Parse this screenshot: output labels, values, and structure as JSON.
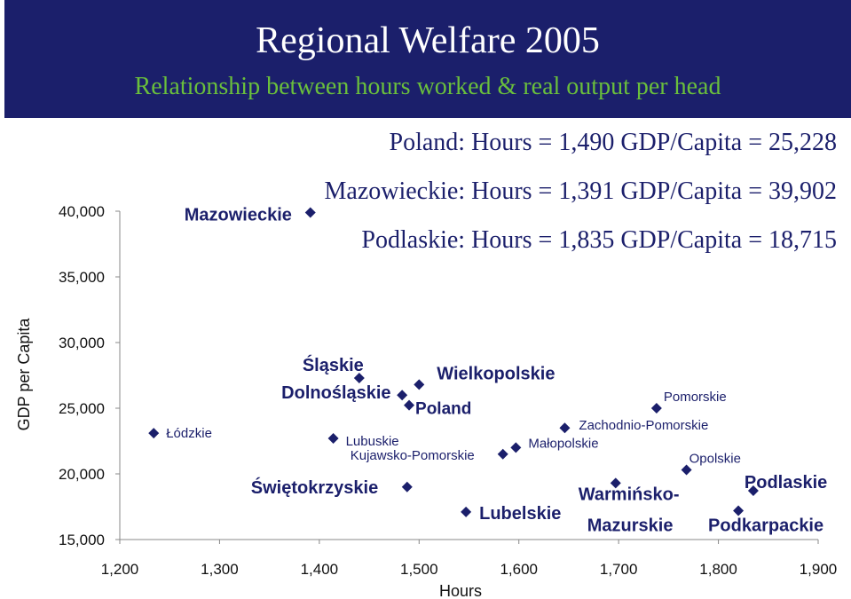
{
  "header": {
    "title": "Regional Welfare 2005",
    "subtitle": "Relationship between hours worked & real output per head"
  },
  "notes": [
    "Poland: Hours = 1,490 GDP/Capita = 25,228",
    "Mazowieckie: Hours = 1,391 GDP/Capita = 39,902",
    "Podlaskie: Hours = 1,835 GDP/Capita = 18,715"
  ],
  "colors": {
    "header_bg": "#1b1f6b",
    "subtitle": "#6abf3c",
    "marker": "#1b1f6b",
    "text": "#1b1f6b"
  },
  "chart_data": {
    "type": "scatter",
    "xlabel": "Hours",
    "ylabel": "GDP per Capita",
    "xlim": [
      1200,
      1900
    ],
    "ylim": [
      15000,
      40000
    ],
    "x_ticks": [
      "1,200",
      "1,300",
      "1,400",
      "1,500",
      "1,600",
      "1,700",
      "1,800",
      "1,900"
    ],
    "y_ticks": [
      "15,000",
      "20,000",
      "25,000",
      "30,000",
      "35,000",
      "40,000"
    ],
    "grid": false,
    "points": [
      {
        "label": "Mazowieckie",
        "x": 1391,
        "y": 39902
      },
      {
        "label": "Śląskie",
        "x": 1440,
        "y": 27300
      },
      {
        "label": "Dolnośląskie",
        "x": 1483,
        "y": 26000
      },
      {
        "label": "Wielkopolskie",
        "x": 1500,
        "y": 26800
      },
      {
        "label": "Poland",
        "x": 1490,
        "y": 25228
      },
      {
        "label": "Pomorskie",
        "x": 1738,
        "y": 25000
      },
      {
        "label": "Zachodnio-Pomorskie",
        "x": 1646,
        "y": 23500
      },
      {
        "label": "Łódzkie",
        "x": 1234,
        "y": 23100
      },
      {
        "label": "Lubuskie",
        "x": 1414,
        "y": 22700
      },
      {
        "label": "Małopolskie",
        "x": 1597,
        "y": 22000
      },
      {
        "label": "Kujawsko-Pomorskie",
        "x": 1584,
        "y": 21500
      },
      {
        "label": "Opolskie",
        "x": 1768,
        "y": 20300
      },
      {
        "label": "Świętokrzyskie",
        "x": 1488,
        "y": 19000
      },
      {
        "label": "Podlaskie",
        "x": 1835,
        "y": 18715
      },
      {
        "label": "Warmińsko-Mazurskie",
        "x": 1697,
        "y": 19300
      },
      {
        "label": "Lubelskie",
        "x": 1547,
        "y": 17100
      },
      {
        "label": "Podkarpackie",
        "x": 1820,
        "y": 17200
      }
    ]
  }
}
